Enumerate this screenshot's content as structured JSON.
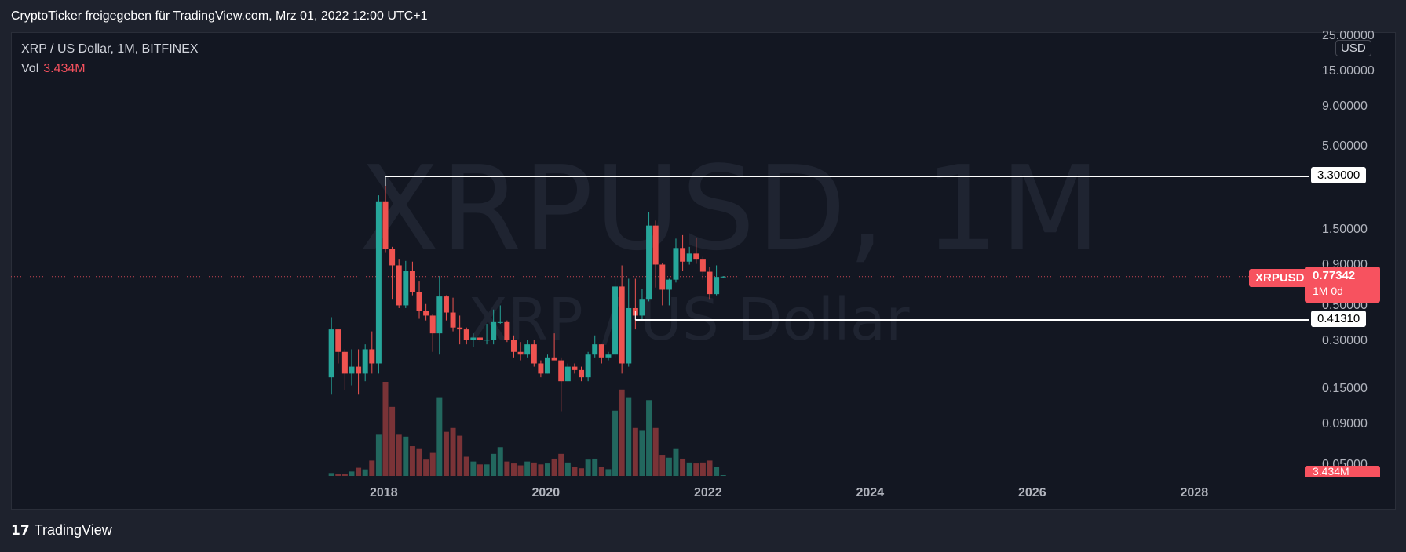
{
  "header": {
    "share_text": "CryptoTicker freigegeben für TradingView.com, Mrz 01, 2022 12:00 UTC+1"
  },
  "legend": {
    "symbol_line": "XRP / US Dollar, 1M, BITFINEX",
    "vol_label": "Vol",
    "vol_value": "3.434M"
  },
  "watermark": {
    "symbol": "XRPUSD, 1M",
    "description": "XRP / US Dollar"
  },
  "price_axis": {
    "currency": "USD",
    "ticks": [
      "25.00000",
      "15.00000",
      "9.00000",
      "5.00000",
      "1.50000",
      "0.90000",
      "0.50000",
      "0.30000",
      "0.15000",
      "0.09000",
      "0.05000"
    ]
  },
  "time_axis": {
    "ticks": [
      "2018",
      "2020",
      "2022",
      "2024",
      "2026",
      "2028"
    ]
  },
  "current_price": {
    "symbol_tag": "XRPUSD",
    "value": "0.77342",
    "countdown": "1M 0d"
  },
  "volume_tag": "3.434M",
  "horizontal_lines": [
    {
      "label": "3.30000",
      "price": 3.3
    },
    {
      "label": "0.41310",
      "price": 0.4131
    }
  ],
  "footer": {
    "brand": "TradingView",
    "logo_glyph": "17"
  },
  "colors": {
    "up": "#26a69a",
    "down": "#ef5350",
    "up_volume": "#22675e",
    "down_volume": "#7a3337",
    "background": "#131722",
    "price_tag": "#f7525f"
  },
  "chart_data": {
    "type": "candlestick",
    "interval": "1M",
    "scale": "log",
    "ylim": [
      0.05,
      25
    ],
    "xlim": [
      "2017-01",
      "2029-08"
    ],
    "candles": [
      {
        "t": "2017-05",
        "o": 0.18,
        "h": 0.43,
        "l": 0.14,
        "c": 0.36,
        "v": 300
      },
      {
        "t": "2017-06",
        "o": 0.36,
        "h": 0.36,
        "l": 0.22,
        "c": 0.26,
        "v": 240
      },
      {
        "t": "2017-07",
        "o": 0.26,
        "h": 0.27,
        "l": 0.15,
        "c": 0.19,
        "v": 220
      },
      {
        "t": "2017-08",
        "o": 0.19,
        "h": 0.27,
        "l": 0.16,
        "c": 0.21,
        "v": 460
      },
      {
        "t": "2017-09",
        "o": 0.21,
        "h": 0.27,
        "l": 0.14,
        "c": 0.19,
        "v": 850
      },
      {
        "t": "2017-10",
        "o": 0.19,
        "h": 0.29,
        "l": 0.17,
        "c": 0.27,
        "v": 680
      },
      {
        "t": "2017-11",
        "o": 0.27,
        "h": 0.35,
        "l": 0.19,
        "c": 0.22,
        "v": 1600
      },
      {
        "t": "2017-12",
        "o": 0.22,
        "h": 2.51,
        "l": 0.19,
        "c": 2.3,
        "v": 4300
      },
      {
        "t": "2018-01",
        "o": 2.3,
        "h": 3.3,
        "l": 1.09,
        "c": 1.15,
        "v": 9800
      },
      {
        "t": "2018-02",
        "o": 1.15,
        "h": 1.19,
        "l": 0.56,
        "c": 0.91,
        "v": 7200
      },
      {
        "t": "2018-03",
        "o": 0.91,
        "h": 1.0,
        "l": 0.49,
        "c": 0.51,
        "v": 4300
      },
      {
        "t": "2018-04",
        "o": 0.51,
        "h": 0.97,
        "l": 0.49,
        "c": 0.84,
        "v": 4100
      },
      {
        "t": "2018-05",
        "o": 0.84,
        "h": 0.96,
        "l": 0.59,
        "c": 0.62,
        "v": 3100
      },
      {
        "t": "2018-06",
        "o": 0.62,
        "h": 0.72,
        "l": 0.42,
        "c": 0.47,
        "v": 2800
      },
      {
        "t": "2018-07",
        "o": 0.47,
        "h": 0.52,
        "l": 0.41,
        "c": 0.44,
        "v": 1700
      },
      {
        "t": "2018-08",
        "o": 0.44,
        "h": 0.45,
        "l": 0.26,
        "c": 0.34,
        "v": 2400
      },
      {
        "t": "2018-09",
        "o": 0.34,
        "h": 0.78,
        "l": 0.25,
        "c": 0.58,
        "v": 8200
      },
      {
        "t": "2018-10",
        "o": 0.58,
        "h": 0.59,
        "l": 0.41,
        "c": 0.46,
        "v": 4600
      },
      {
        "t": "2018-11",
        "o": 0.46,
        "h": 0.57,
        "l": 0.35,
        "c": 0.37,
        "v": 5000
      },
      {
        "t": "2018-12",
        "o": 0.37,
        "h": 0.44,
        "l": 0.29,
        "c": 0.36,
        "v": 4200
      },
      {
        "t": "2019-01",
        "o": 0.36,
        "h": 0.37,
        "l": 0.29,
        "c": 0.31,
        "v": 2000
      },
      {
        "t": "2019-02",
        "o": 0.31,
        "h": 0.34,
        "l": 0.28,
        "c": 0.32,
        "v": 1500
      },
      {
        "t": "2019-03",
        "o": 0.32,
        "h": 0.33,
        "l": 0.3,
        "c": 0.31,
        "v": 1200
      },
      {
        "t": "2019-04",
        "o": 0.31,
        "h": 0.39,
        "l": 0.29,
        "c": 0.31,
        "v": 1200
      },
      {
        "t": "2019-05",
        "o": 0.31,
        "h": 0.48,
        "l": 0.29,
        "c": 0.4,
        "v": 2300
      },
      {
        "t": "2019-06",
        "o": 0.4,
        "h": 0.51,
        "l": 0.39,
        "c": 0.4,
        "v": 3000
      },
      {
        "t": "2019-07",
        "o": 0.4,
        "h": 0.41,
        "l": 0.3,
        "c": 0.31,
        "v": 1500
      },
      {
        "t": "2019-08",
        "o": 0.31,
        "h": 0.33,
        "l": 0.24,
        "c": 0.26,
        "v": 1300
      },
      {
        "t": "2019-09",
        "o": 0.26,
        "h": 0.3,
        "l": 0.23,
        "c": 0.25,
        "v": 1100
      },
      {
        "t": "2019-10",
        "o": 0.25,
        "h": 0.31,
        "l": 0.24,
        "c": 0.29,
        "v": 1500
      },
      {
        "t": "2019-11",
        "o": 0.29,
        "h": 0.31,
        "l": 0.21,
        "c": 0.22,
        "v": 1400
      },
      {
        "t": "2019-12",
        "o": 0.22,
        "h": 0.23,
        "l": 0.18,
        "c": 0.19,
        "v": 1200
      },
      {
        "t": "2020-01",
        "o": 0.19,
        "h": 0.25,
        "l": 0.19,
        "c": 0.24,
        "v": 1300
      },
      {
        "t": "2020-02",
        "o": 0.24,
        "h": 0.34,
        "l": 0.23,
        "c": 0.23,
        "v": 1800
      },
      {
        "t": "2020-03",
        "o": 0.23,
        "h": 0.24,
        "l": 0.11,
        "c": 0.17,
        "v": 2300
      },
      {
        "t": "2020-04",
        "o": 0.17,
        "h": 0.22,
        "l": 0.17,
        "c": 0.21,
        "v": 1400
      },
      {
        "t": "2020-05",
        "o": 0.21,
        "h": 0.22,
        "l": 0.19,
        "c": 0.2,
        "v": 900
      },
      {
        "t": "2020-06",
        "o": 0.2,
        "h": 0.21,
        "l": 0.17,
        "c": 0.18,
        "v": 800
      },
      {
        "t": "2020-07",
        "o": 0.18,
        "h": 0.26,
        "l": 0.17,
        "c": 0.25,
        "v": 1700
      },
      {
        "t": "2020-08",
        "o": 0.25,
        "h": 0.33,
        "l": 0.24,
        "c": 0.29,
        "v": 1800
      },
      {
        "t": "2020-09",
        "o": 0.29,
        "h": 0.29,
        "l": 0.22,
        "c": 0.24,
        "v": 900
      },
      {
        "t": "2020-10",
        "o": 0.24,
        "h": 0.26,
        "l": 0.23,
        "c": 0.25,
        "v": 700
      },
      {
        "t": "2020-11",
        "o": 0.25,
        "h": 0.78,
        "l": 0.24,
        "c": 0.67,
        "v": 6800
      },
      {
        "t": "2020-12",
        "o": 0.67,
        "h": 0.91,
        "l": 0.19,
        "c": 0.22,
        "v": 9000
      },
      {
        "t": "2021-01",
        "o": 0.22,
        "h": 0.75,
        "l": 0.21,
        "c": 0.49,
        "v": 8200
      },
      {
        "t": "2021-02",
        "o": 0.49,
        "h": 0.75,
        "l": 0.36,
        "c": 0.44,
        "v": 5000
      },
      {
        "t": "2021-03",
        "o": 0.44,
        "h": 0.65,
        "l": 0.41,
        "c": 0.56,
        "v": 4700
      },
      {
        "t": "2021-04",
        "o": 0.56,
        "h": 1.96,
        "l": 0.54,
        "c": 1.62,
        "v": 7900
      },
      {
        "t": "2021-05",
        "o": 1.62,
        "h": 1.74,
        "l": 0.66,
        "c": 0.92,
        "v": 5000
      },
      {
        "t": "2021-06",
        "o": 0.92,
        "h": 0.94,
        "l": 0.51,
        "c": 0.64,
        "v": 2200
      },
      {
        "t": "2021-07",
        "o": 0.64,
        "h": 0.75,
        "l": 0.51,
        "c": 0.74,
        "v": 1900
      },
      {
        "t": "2021-08",
        "o": 0.74,
        "h": 1.34,
        "l": 0.71,
        "c": 1.17,
        "v": 2800
      },
      {
        "t": "2021-09",
        "o": 1.17,
        "h": 1.41,
        "l": 0.84,
        "c": 0.96,
        "v": 1800
      },
      {
        "t": "2021-10",
        "o": 0.96,
        "h": 1.19,
        "l": 0.92,
        "c": 1.08,
        "v": 1400
      },
      {
        "t": "2021-11",
        "o": 1.08,
        "h": 1.35,
        "l": 0.93,
        "c": 1.0,
        "v": 1300
      },
      {
        "t": "2021-12",
        "o": 1.0,
        "h": 1.03,
        "l": 0.74,
        "c": 0.83,
        "v": 1400
      },
      {
        "t": "2022-01",
        "o": 0.83,
        "h": 0.89,
        "l": 0.56,
        "c": 0.6,
        "v": 1600
      },
      {
        "t": "2022-02",
        "o": 0.6,
        "h": 0.91,
        "l": 0.59,
        "c": 0.77,
        "v": 900
      },
      {
        "t": "2022-03",
        "o": 0.77,
        "h": 0.78,
        "l": 0.76,
        "c": 0.77342,
        "v": 60
      }
    ]
  }
}
